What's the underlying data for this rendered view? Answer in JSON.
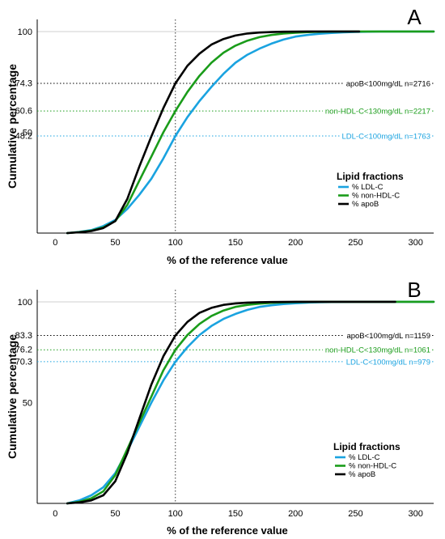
{
  "chart_data": [
    {
      "type": "line",
      "panel": "A",
      "xlabel": "% of the reference value",
      "ylabel": "Cumulative percentage",
      "xlim": [
        -15,
        315
      ],
      "ylim": [
        0,
        106
      ],
      "xticks": [
        "0",
        "50",
        "100",
        "150",
        "200",
        "250",
        "300"
      ],
      "ytick_labels": [
        {
          "value": 100,
          "text": "100",
          "color": "#000000"
        },
        {
          "value": 74.3,
          "text": "74.3",
          "color": "#000000"
        },
        {
          "value": 60.6,
          "text": "60.6",
          "color": "#1a9c1a"
        },
        {
          "value": 50,
          "text": "50",
          "color": "#000000"
        },
        {
          "value": 48.2,
          "text": "48.2",
          "color": "#1aa3e0"
        }
      ],
      "vline_x": 100,
      "legend": {
        "title": "Lipid fractions",
        "position": "right"
      },
      "reference_lines": [
        {
          "y": 74.3,
          "label": "apoB<100mg/dL n=2716",
          "color": "#000000"
        },
        {
          "y": 60.6,
          "label": "non-HDL-C<130mg/dL n=2217",
          "color": "#1a9c1a"
        },
        {
          "y": 48.2,
          "label": "LDL-C<100mg/dL n=1763",
          "color": "#1aa3e0"
        }
      ],
      "series": [
        {
          "name": "% LDL-C",
          "color": "#1aa3e0",
          "x": [
            10,
            20,
            30,
            40,
            50,
            60,
            70,
            80,
            90,
            100,
            110,
            120,
            130,
            140,
            150,
            160,
            170,
            180,
            190,
            200,
            210,
            220,
            230,
            240,
            250,
            260,
            270,
            280,
            290,
            300,
            315
          ],
          "y": [
            0,
            0.6,
            1.5,
            3.5,
            6.5,
            12,
            19,
            27,
            37,
            48.2,
            57.5,
            65.5,
            72.5,
            79,
            84.5,
            88.5,
            91.5,
            94,
            96,
            97.5,
            98.3,
            98.9,
            99.3,
            99.6,
            99.8,
            99.9,
            100,
            100,
            100,
            100,
            100
          ]
        },
        {
          "name": "% non-HDL-C",
          "color": "#1a9c1a",
          "x": [
            10,
            20,
            30,
            40,
            50,
            60,
            70,
            80,
            90,
            100,
            110,
            120,
            130,
            140,
            150,
            160,
            170,
            180,
            190,
            200,
            210,
            220,
            230,
            240,
            250,
            260,
            280,
            300,
            315
          ],
          "y": [
            0,
            0.5,
            1.2,
            2.8,
            6,
            14,
            26,
            38,
            50,
            60.6,
            70,
            78,
            84.5,
            89.5,
            93,
            95.5,
            97.2,
            98.3,
            99,
            99.4,
            99.7,
            99.85,
            99.92,
            99.97,
            100,
            100,
            100,
            100,
            100
          ]
        },
        {
          "name": "% apoB",
          "color": "#000000",
          "x": [
            10,
            20,
            30,
            40,
            50,
            60,
            70,
            80,
            90,
            100,
            110,
            120,
            130,
            140,
            150,
            160,
            170,
            180,
            190,
            200,
            210,
            220,
            230,
            240,
            250,
            253
          ],
          "y": [
            0,
            0.4,
            1,
            2.5,
            6,
            17,
            33,
            48,
            62,
            74.3,
            83,
            89,
            93.5,
            96.3,
            98,
            99,
            99.5,
            99.75,
            99.9,
            99.95,
            100,
            100,
            100,
            100,
            100,
            100
          ]
        }
      ]
    },
    {
      "type": "line",
      "panel": "B",
      "xlabel": "% of the reference value",
      "ylabel": "Cumulative percentage",
      "xlim": [
        -15,
        315
      ],
      "ylim": [
        0,
        106
      ],
      "xticks": [
        "0",
        "50",
        "100",
        "150",
        "200",
        "250",
        "300"
      ],
      "ytick_labels": [
        {
          "value": 100,
          "text": "100",
          "color": "#000000"
        },
        {
          "value": 83.3,
          "text": "83.3",
          "color": "#000000"
        },
        {
          "value": 76.2,
          "text": "76.2",
          "color": "#1a9c1a"
        },
        {
          "value": 70.3,
          "text": "70.3",
          "color": "#1aa3e0"
        },
        {
          "value": 50,
          "text": "50",
          "color": "#000000"
        }
      ],
      "vline_x": 100,
      "legend": {
        "title": "Lipid fractions",
        "position": "right"
      },
      "reference_lines": [
        {
          "y": 83.3,
          "label": "apoB<100mg/dL n=1159",
          "color": "#000000"
        },
        {
          "y": 76.2,
          "label": "non-HDL-C<130mg/dL n=1061",
          "color": "#1a9c1a"
        },
        {
          "y": 70.3,
          "label": "LDL-C<100mg/dL n=979",
          "color": "#1aa3e0"
        }
      ],
      "series": [
        {
          "name": "% LDL-C",
          "color": "#1aa3e0",
          "x": [
            10,
            20,
            30,
            40,
            50,
            60,
            70,
            80,
            90,
            100,
            110,
            120,
            130,
            140,
            150,
            160,
            170,
            180,
            190,
            200,
            210,
            220,
            230,
            240,
            250,
            260,
            280,
            300,
            315
          ],
          "y": [
            0,
            1.5,
            4,
            8,
            15,
            26,
            38,
            50,
            61,
            70.3,
            77.5,
            83.5,
            88,
            91.5,
            94,
            96,
            97.5,
            98.3,
            98.9,
            99.3,
            99.6,
            99.8,
            99.9,
            99.95,
            100,
            100,
            100,
            100,
            100
          ]
        },
        {
          "name": "% non-HDL-C",
          "color": "#1a9c1a",
          "x": [
            10,
            20,
            30,
            40,
            50,
            60,
            70,
            80,
            90,
            100,
            110,
            120,
            130,
            140,
            150,
            160,
            170,
            180,
            190,
            200,
            210,
            220,
            230,
            240,
            250,
            260,
            280,
            300,
            315
          ],
          "y": [
            0,
            0.8,
            2.5,
            6,
            14,
            27,
            40,
            53,
            66,
            76.2,
            83.5,
            89,
            93,
            95.7,
            97.5,
            98.5,
            99.1,
            99.5,
            99.75,
            99.88,
            99.95,
            100,
            100,
            100,
            100,
            100,
            100,
            100,
            100
          ]
        },
        {
          "name": "% apoB",
          "color": "#000000",
          "x": [
            10,
            20,
            30,
            40,
            50,
            60,
            70,
            80,
            90,
            100,
            110,
            120,
            130,
            140,
            150,
            160,
            170,
            180,
            190,
            200,
            210,
            220,
            230,
            240,
            250,
            260,
            270,
            283
          ],
          "y": [
            0,
            0.5,
            1.5,
            4,
            11,
            25,
            42,
            59,
            73,
            83.3,
            90,
            94.5,
            97,
            98.5,
            99.2,
            99.6,
            99.8,
            99.9,
            99.95,
            100,
            100,
            100,
            100,
            100,
            100,
            100,
            100,
            100
          ]
        }
      ]
    }
  ]
}
